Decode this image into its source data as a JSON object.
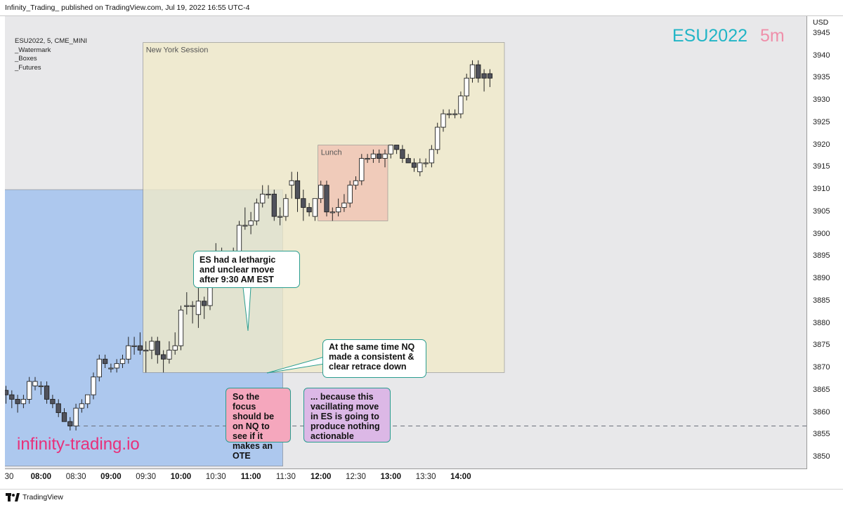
{
  "header": {
    "published": "Infinity_Trading_ published on TradingView.com, Jul 19, 2022 16:55 UTC-4"
  },
  "symbol_info": [
    "ESU2022, 5, CME_MINI",
    "_Watermark",
    "_Boxes",
    "_Futures"
  ],
  "watermark": {
    "symbol": "ESU2022",
    "timeframe": "5m"
  },
  "site": "infinity-trading.io",
  "footer": {
    "brand": "TradingView"
  },
  "annotations": {
    "lethargic": "ES had a lethargic and unclear move after 9:30 AM EST",
    "nq": "At the same time NQ made a consistent & clear retrace down",
    "focus": "So the focus should be on NQ to see if it makes an OTE",
    "because": "... because this vacillating move in ES is going to produce nothing actionable"
  },
  "colors": {
    "bull_fill": "#ffffff",
    "bear_fill": "#50525c",
    "wick": "#222222",
    "asia_box": "#adc8ee",
    "ny_box": "#f1ebc8",
    "overlap_box": "#d2dccc",
    "lunch_box": "#efc1b4",
    "watermark_symbol": "#21b5c6",
    "watermark_timeframe": "#ef8faa",
    "site": "#e8307a"
  },
  "chart_data": {
    "type": "candlestick",
    "symbol": "ESU2022",
    "interval": "5",
    "currency": "USD",
    "ylim": [
      3847,
      3946
    ],
    "y_ticks": [
      3850,
      3855,
      3860,
      3865,
      3870,
      3875,
      3880,
      3885,
      3890,
      3895,
      3900,
      3905,
      3910,
      3915,
      3920,
      3925,
      3930,
      3935,
      3940,
      3945
    ],
    "x_ticks": [
      {
        "label": "30",
        "time": "07:30",
        "bold": false
      },
      {
        "label": "08:00",
        "time": "08:00",
        "bold": true
      },
      {
        "label": "08:30",
        "time": "08:30",
        "bold": false
      },
      {
        "label": "09:00",
        "time": "09:00",
        "bold": true
      },
      {
        "label": "09:30",
        "time": "09:30",
        "bold": false
      },
      {
        "label": "10:00",
        "time": "10:00",
        "bold": true
      },
      {
        "label": "10:30",
        "time": "10:30",
        "bold": false
      },
      {
        "label": "11:00",
        "time": "11:00",
        "bold": true
      },
      {
        "label": "11:30",
        "time": "11:30",
        "bold": false
      },
      {
        "label": "12:00",
        "time": "12:00",
        "bold": true
      },
      {
        "label": "12:30",
        "time": "12:30",
        "bold": false
      },
      {
        "label": "13:00",
        "time": "13:00",
        "bold": true
      },
      {
        "label": "13:30",
        "time": "13:30",
        "bold": false
      },
      {
        "label": "14:00",
        "time": "14:00",
        "bold": true
      }
    ],
    "candles": [
      {
        "t": "07:30",
        "o": 3865,
        "h": 3866,
        "l": 3862,
        "c": 3864
      },
      {
        "t": "07:35",
        "o": 3864,
        "h": 3865,
        "l": 3861,
        "c": 3863
      },
      {
        "t": "07:40",
        "o": 3863,
        "h": 3864,
        "l": 3860,
        "c": 3862
      },
      {
        "t": "07:45",
        "o": 3862,
        "h": 3864,
        "l": 3861,
        "c": 3863
      },
      {
        "t": "07:50",
        "o": 3863,
        "h": 3868,
        "l": 3862,
        "c": 3867
      },
      {
        "t": "07:55",
        "o": 3866,
        "h": 3868,
        "l": 3865,
        "c": 3867
      },
      {
        "t": "08:00",
        "o": 3866,
        "h": 3867,
        "l": 3864,
        "c": 3866
      },
      {
        "t": "08:05",
        "o": 3866,
        "h": 3867,
        "l": 3862,
        "c": 3863
      },
      {
        "t": "08:10",
        "o": 3863,
        "h": 3864,
        "l": 3861,
        "c": 3862
      },
      {
        "t": "08:15",
        "o": 3862,
        "h": 3863,
        "l": 3859,
        "c": 3860
      },
      {
        "t": "08:20",
        "o": 3860,
        "h": 3861,
        "l": 3858,
        "c": 3858
      },
      {
        "t": "08:25",
        "o": 3858,
        "h": 3859,
        "l": 3856,
        "c": 3857
      },
      {
        "t": "08:30",
        "o": 3857,
        "h": 3862,
        "l": 3856,
        "c": 3861
      },
      {
        "t": "08:35",
        "o": 3861,
        "h": 3863,
        "l": 3860,
        "c": 3862
      },
      {
        "t": "08:40",
        "o": 3862,
        "h": 3864,
        "l": 3861,
        "c": 3864
      },
      {
        "t": "08:45",
        "o": 3864,
        "h": 3869,
        "l": 3863,
        "c": 3868
      },
      {
        "t": "08:50",
        "o": 3868,
        "h": 3873,
        "l": 3867,
        "c": 3872
      },
      {
        "t": "08:55",
        "o": 3872,
        "h": 3873,
        "l": 3870,
        "c": 3871
      },
      {
        "t": "09:00",
        "o": 3870,
        "h": 3871,
        "l": 3869,
        "c": 3870
      },
      {
        "t": "09:05",
        "o": 3870,
        "h": 3872,
        "l": 3869,
        "c": 3871
      },
      {
        "t": "09:10",
        "o": 3871,
        "h": 3873,
        "l": 3870,
        "c": 3872
      },
      {
        "t": "09:15",
        "o": 3872,
        "h": 3877,
        "l": 3871,
        "c": 3875
      },
      {
        "t": "09:20",
        "o": 3875,
        "h": 3877,
        "l": 3873,
        "c": 3875
      },
      {
        "t": "09:25",
        "o": 3875,
        "h": 3878,
        "l": 3873,
        "c": 3874
      },
      {
        "t": "09:30",
        "o": 3874,
        "h": 3876,
        "l": 3869,
        "c": 3874
      },
      {
        "t": "09:35",
        "o": 3874,
        "h": 3877,
        "l": 3872,
        "c": 3876
      },
      {
        "t": "09:40",
        "o": 3876,
        "h": 3877,
        "l": 3871,
        "c": 3873
      },
      {
        "t": "09:45",
        "o": 3873,
        "h": 3874,
        "l": 3869,
        "c": 3872
      },
      {
        "t": "09:50",
        "o": 3872,
        "h": 3876,
        "l": 3871,
        "c": 3874
      },
      {
        "t": "09:55",
        "o": 3874,
        "h": 3878,
        "l": 3873,
        "c": 3875
      },
      {
        "t": "10:00",
        "o": 3875,
        "h": 3884,
        "l": 3874,
        "c": 3883
      },
      {
        "t": "10:05",
        "o": 3884,
        "h": 3887,
        "l": 3882,
        "c": 3884
      },
      {
        "t": "10:10",
        "o": 3884,
        "h": 3885,
        "l": 3880,
        "c": 3884
      },
      {
        "t": "10:15",
        "o": 3882,
        "h": 3889,
        "l": 3879,
        "c": 3885
      },
      {
        "t": "10:20",
        "o": 3885,
        "h": 3886,
        "l": 3881,
        "c": 3884
      },
      {
        "t": "10:25",
        "o": 3884,
        "h": 3891,
        "l": 3883,
        "c": 3890
      },
      {
        "t": "10:30",
        "o": 3890,
        "h": 3898,
        "l": 3889,
        "c": 3896
      },
      {
        "t": "10:35",
        "o": 3896,
        "h": 3897,
        "l": 3893,
        "c": 3894
      },
      {
        "t": "10:40",
        "o": 3894,
        "h": 3896,
        "l": 3891,
        "c": 3894
      },
      {
        "t": "10:45",
        "o": 3894,
        "h": 3897,
        "l": 3893,
        "c": 3895
      },
      {
        "t": "10:50",
        "o": 3895,
        "h": 3903,
        "l": 3895,
        "c": 3902
      },
      {
        "t": "10:55",
        "o": 3902,
        "h": 3906,
        "l": 3901,
        "c": 3902
      },
      {
        "t": "11:00",
        "o": 3902,
        "h": 3905,
        "l": 3900,
        "c": 3903
      },
      {
        "t": "11:05",
        "o": 3903,
        "h": 3908,
        "l": 3902,
        "c": 3907
      },
      {
        "t": "11:10",
        "o": 3907,
        "h": 3911,
        "l": 3906,
        "c": 3909
      },
      {
        "t": "11:15",
        "o": 3909,
        "h": 3911,
        "l": 3908,
        "c": 3909
      },
      {
        "t": "11:20",
        "o": 3909,
        "h": 3910,
        "l": 3903,
        "c": 3904
      },
      {
        "t": "11:25",
        "o": 3904,
        "h": 3906,
        "l": 3902,
        "c": 3904
      },
      {
        "t": "11:30",
        "o": 3904,
        "h": 3909,
        "l": 3903,
        "c": 3908
      },
      {
        "t": "11:35",
        "o": 3911,
        "h": 3914,
        "l": 3908,
        "c": 3912
      },
      {
        "t": "11:40",
        "o": 3912,
        "h": 3914,
        "l": 3905,
        "c": 3908
      },
      {
        "t": "11:45",
        "o": 3908,
        "h": 3910,
        "l": 3903,
        "c": 3906
      },
      {
        "t": "11:50",
        "o": 3906,
        "h": 3907,
        "l": 3904,
        "c": 3905
      },
      {
        "t": "11:55",
        "o": 3904,
        "h": 3908,
        "l": 3903,
        "c": 3908
      },
      {
        "t": "12:00",
        "o": 3908,
        "h": 3912,
        "l": 3907,
        "c": 3911
      },
      {
        "t": "12:05",
        "o": 3911,
        "h": 3912,
        "l": 3904,
        "c": 3905
      },
      {
        "t": "12:10",
        "o": 3905,
        "h": 3906,
        "l": 3903,
        "c": 3905
      },
      {
        "t": "12:15",
        "o": 3905,
        "h": 3908,
        "l": 3904,
        "c": 3906
      },
      {
        "t": "12:20",
        "o": 3906,
        "h": 3909,
        "l": 3905,
        "c": 3907
      },
      {
        "t": "12:25",
        "o": 3907,
        "h": 3912,
        "l": 3906,
        "c": 3911
      },
      {
        "t": "12:30",
        "o": 3911,
        "h": 3913,
        "l": 3910,
        "c": 3912
      },
      {
        "t": "12:35",
        "o": 3912,
        "h": 3918,
        "l": 3911,
        "c": 3917
      },
      {
        "t": "12:40",
        "o": 3917,
        "h": 3918,
        "l": 3916,
        "c": 3917
      },
      {
        "t": "12:45",
        "o": 3917,
        "h": 3919,
        "l": 3916,
        "c": 3918
      },
      {
        "t": "12:50",
        "o": 3918,
        "h": 3919,
        "l": 3916,
        "c": 3917
      },
      {
        "t": "12:55",
        "o": 3917,
        "h": 3919,
        "l": 3915,
        "c": 3918
      },
      {
        "t": "13:00",
        "o": 3918,
        "h": 3920,
        "l": 3917,
        "c": 3920
      },
      {
        "t": "13:05",
        "o": 3920,
        "h": 3920,
        "l": 3918,
        "c": 3919
      },
      {
        "t": "13:10",
        "o": 3919,
        "h": 3920,
        "l": 3916,
        "c": 3917
      },
      {
        "t": "13:15",
        "o": 3917,
        "h": 3918,
        "l": 3916,
        "c": 3916
      },
      {
        "t": "13:20",
        "o": 3916,
        "h": 3917,
        "l": 3914,
        "c": 3915
      },
      {
        "t": "13:25",
        "o": 3914,
        "h": 3917,
        "l": 3913,
        "c": 3916
      },
      {
        "t": "13:30",
        "o": 3916,
        "h": 3917,
        "l": 3915,
        "c": 3916
      },
      {
        "t": "13:35",
        "o": 3916,
        "h": 3920,
        "l": 3915,
        "c": 3919
      },
      {
        "t": "13:40",
        "o": 3919,
        "h": 3925,
        "l": 3918,
        "c": 3924
      },
      {
        "t": "13:45",
        "o": 3924,
        "h": 3928,
        "l": 3923,
        "c": 3927
      },
      {
        "t": "13:50",
        "o": 3927,
        "h": 3928,
        "l": 3926,
        "c": 3927
      },
      {
        "t": "13:55",
        "o": 3927,
        "h": 3928,
        "l": 3926,
        "c": 3927
      },
      {
        "t": "14:00",
        "o": 3927,
        "h": 3932,
        "l": 3926,
        "c": 3931
      },
      {
        "t": "14:05",
        "o": 3931,
        "h": 3936,
        "l": 3930,
        "c": 3935
      },
      {
        "t": "14:10",
        "o": 3935,
        "h": 3939,
        "l": 3934,
        "c": 3938
      },
      {
        "t": "14:15",
        "o": 3938,
        "h": 3939,
        "l": 3934,
        "c": 3935
      },
      {
        "t": "14:20",
        "o": 3936,
        "h": 3937,
        "l": 3932,
        "c": 3935
      },
      {
        "t": "14:25",
        "o": 3936,
        "h": 3937,
        "l": 3933,
        "c": 3935
      }
    ],
    "boxes": [
      {
        "name": "Asia-London range",
        "from": "07:30",
        "to": "11:25",
        "top": 3910,
        "bottom": 3848,
        "color": "#adc8ee"
      },
      {
        "name": "New York Session",
        "label": "New York Session",
        "from": "09:30",
        "to": "14:35",
        "top": 3943,
        "bottom": 3869,
        "color": "#f1ebc8"
      },
      {
        "name": "Lunch",
        "label": "Lunch",
        "from": "12:00",
        "to": "12:55",
        "top": 3920,
        "bottom": 3903,
        "color": "#efc1b4"
      }
    ],
    "hline": {
      "value": 3857,
      "from": "08:30",
      "style": "dashed"
    }
  }
}
